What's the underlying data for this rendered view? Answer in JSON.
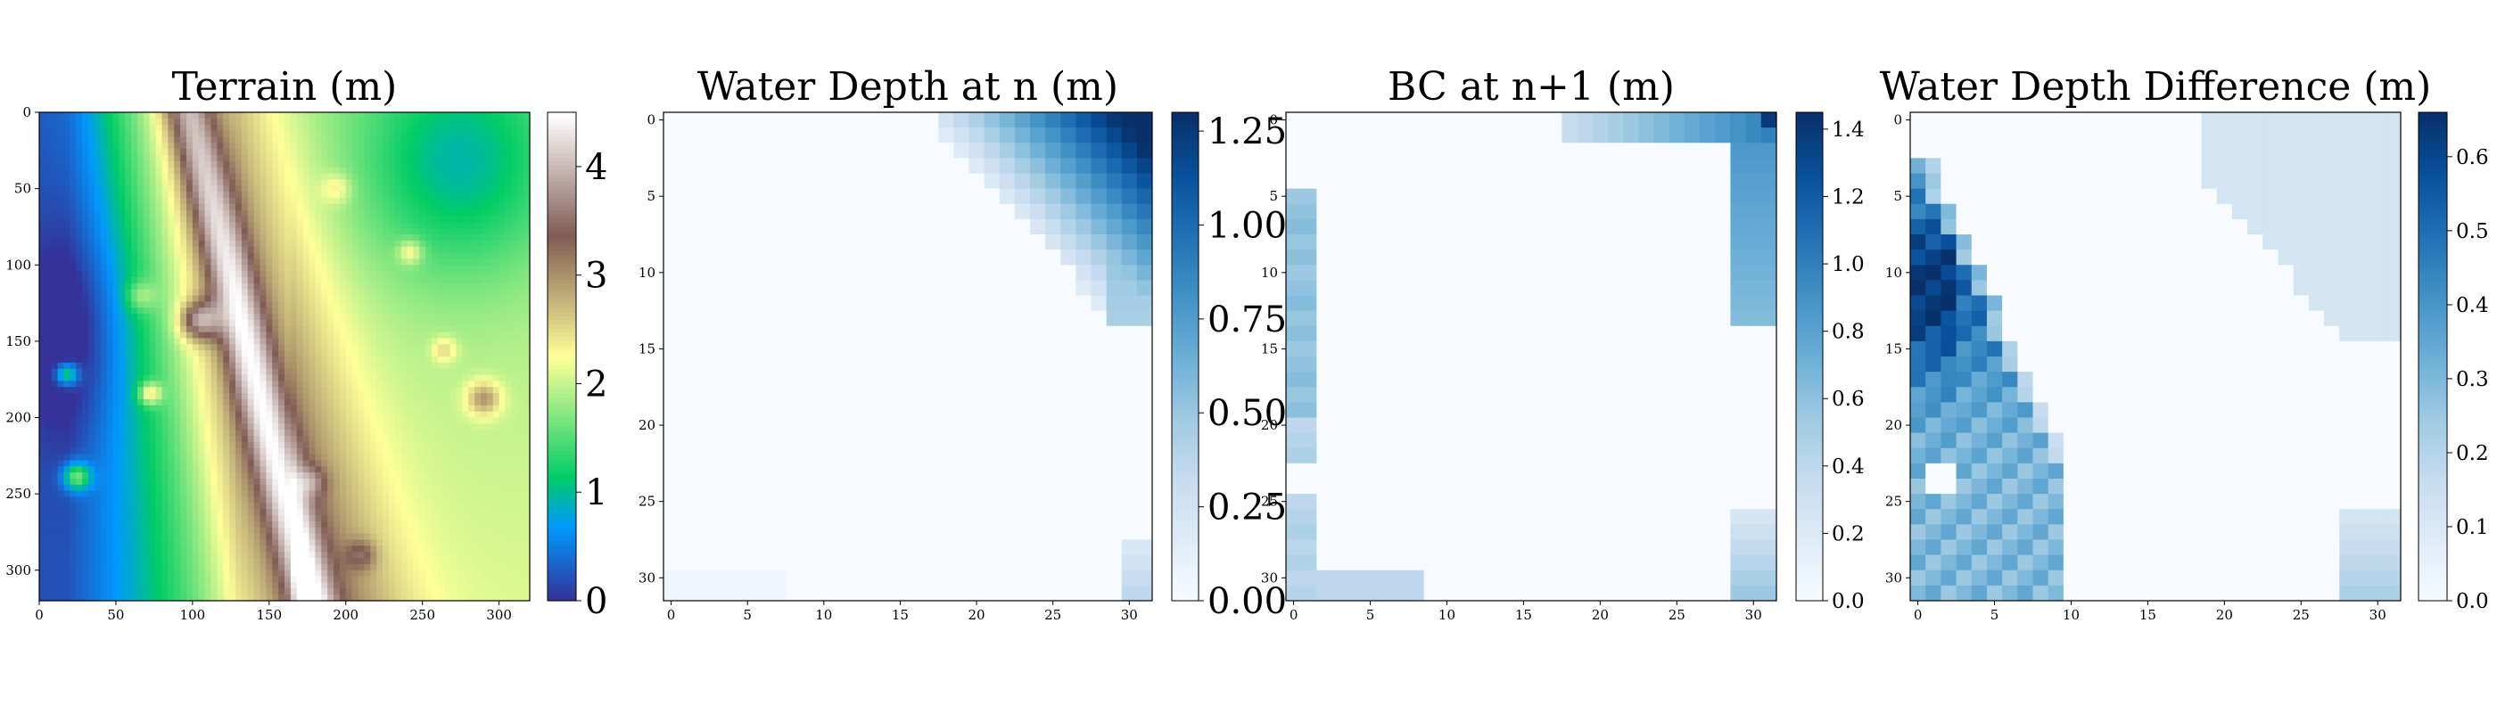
{
  "chart_data": [
    {
      "type": "heatmap",
      "title": "Terrain (m)",
      "xlabel": "",
      "ylabel": "",
      "xlim": [
        0,
        320
      ],
      "ylim": [
        320,
        0
      ],
      "x_ticks": [
        "0",
        "50",
        "100",
        "150",
        "200",
        "250",
        "300"
      ],
      "y_ticks": [
        "0",
        "50",
        "100",
        "150",
        "200",
        "250",
        "300"
      ],
      "colormap": "terrain",
      "color_range": [
        0,
        4.5
      ],
      "colorbar_ticks": [
        "0",
        "1",
        "2",
        "3",
        "4"
      ],
      "description_values": "Elevation field 0–4.5 m; low (blue, ~0–0.5) along left side, green mid (~1–1.5) top-right, yellow plateau (~2–2.5), brown ridge (~3–4) running diagonally from top-center to bottom-center with scattered peaks."
    },
    {
      "type": "heatmap",
      "title": "Water Depth at n (m)",
      "xlabel": "",
      "ylabel": "",
      "xlim": [
        0,
        31
      ],
      "ylim": [
        31,
        0
      ],
      "x_ticks": [
        "0",
        "5",
        "10",
        "15",
        "20",
        "25",
        "30"
      ],
      "y_ticks": [
        "0",
        "5",
        "10",
        "15",
        "20",
        "25",
        "30"
      ],
      "colormap": "Blues",
      "color_range": [
        0,
        1.3
      ],
      "colorbar_ticks": [
        "0.00",
        "0.25",
        "0.50",
        "0.75",
        "1.00",
        "1.25"
      ],
      "description_values": "Near-zero everywhere except a wedge in the top-right corner (depth ~0.3–1.3 m, deepest at row 0, col 31) and a faint patch at bottom-right (rows 28–31, cols 30–31)."
    },
    {
      "type": "heatmap",
      "title": "BC at n+1 (m)",
      "xlabel": "",
      "ylabel": "",
      "xlim": [
        0,
        31
      ],
      "ylim": [
        31,
        0
      ],
      "x_ticks": [
        "0",
        "5",
        "10",
        "15",
        "20",
        "25",
        "30"
      ],
      "y_ticks": [
        "0",
        "5",
        "10",
        "15",
        "20",
        "25",
        "30"
      ],
      "colormap": "Blues",
      "color_range": [
        0,
        1.45
      ],
      "colorbar_ticks": [
        "0.0",
        "0.2",
        "0.4",
        "0.6",
        "0.8",
        "1.0",
        "1.2",
        "1.4"
      ],
      "description_values": "Boundary values only: top row cols ~18–31 (0.4–1.4 m), right columns rows 0–13 (0.6–1.2 m), left columns rows 5–31 (0.2–0.6 m), bottom row cols 0–9 (~0.4 m), bottom-right rows 26–31 (0.2–0.6 m); interior ~0."
    },
    {
      "type": "heatmap",
      "title": "Water Depth Difference (m)",
      "xlabel": "",
      "ylabel": "",
      "xlim": [
        0,
        31
      ],
      "ylim": [
        31,
        0
      ],
      "x_ticks": [
        "0",
        "5",
        "10",
        "15",
        "20",
        "25",
        "30"
      ],
      "y_ticks": [
        "0",
        "5",
        "10",
        "15",
        "20",
        "25",
        "30"
      ],
      "colormap": "Blues",
      "color_range": [
        0,
        0.66
      ],
      "colorbar_ticks": [
        "0.0",
        "0.1",
        "0.2",
        "0.3",
        "0.4",
        "0.5",
        "0.6"
      ],
      "description_values": "Large region in lower-left (rows 3–31, cols 0–9) with values 0.2–0.66 m, darkest near rows 8–14 cols 0–2, a white hole at rows 23–24 cols 1–2; pale (~0.1) wedge in top-right corner; small pale patch bottom-right."
    }
  ]
}
